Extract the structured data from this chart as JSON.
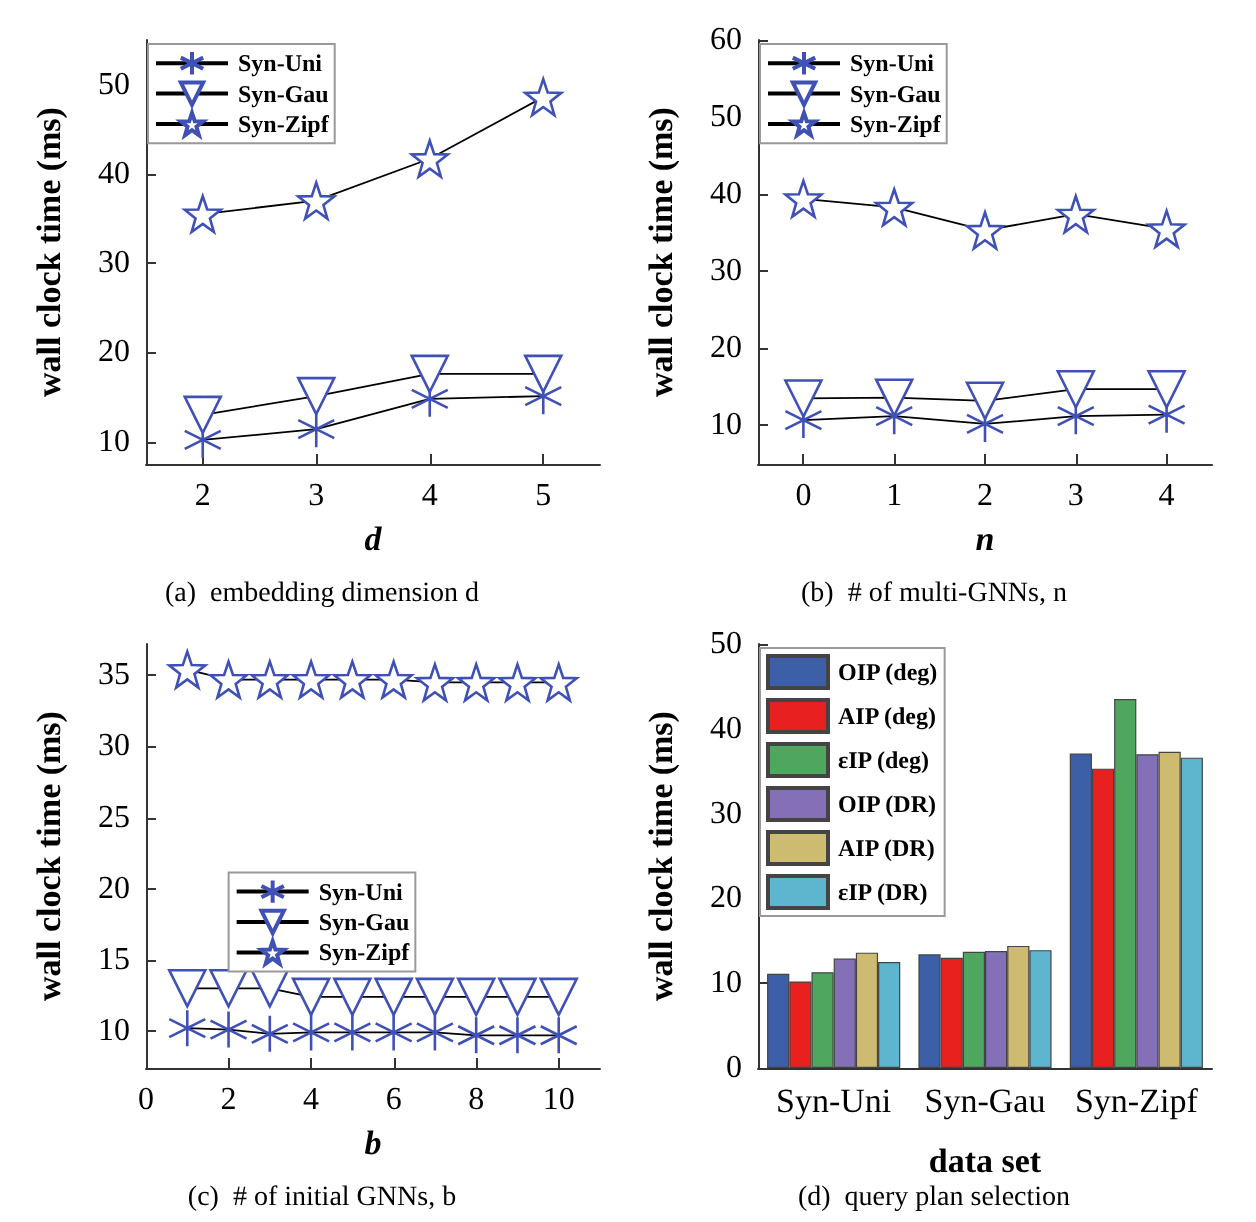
{
  "chart_data": [
    {
      "type": "line",
      "xlabel": "d",
      "ylabel": "wall clock time (ms)",
      "annotations": [
        "(a)  embedding dimension d"
      ],
      "x": [
        2,
        3,
        4,
        5
      ],
      "xlim": [
        1.5,
        5.5
      ],
      "xticks": [
        2,
        3,
        4,
        5
      ],
      "ylim": [
        7.5,
        55
      ],
      "yticks": [
        10,
        20,
        30,
        40,
        50
      ],
      "grid": false,
      "legend": "top left",
      "series": [
        {
          "name": "Syn-Uni",
          "color": "#3f51b5",
          "marker": "cross",
          "values": [
            10.2,
            11.4,
            14.8,
            15.1
          ]
        },
        {
          "name": "Syn-Gau",
          "color": "#3f51b5",
          "marker": "triangle",
          "values": [
            13.0,
            15.1,
            17.6,
            17.6
          ]
        },
        {
          "name": "Syn-Zipf",
          "color": "#3f51b5",
          "marker": "star",
          "values": [
            35.5,
            37.0,
            41.7,
            48.6
          ]
        }
      ]
    },
    {
      "type": "line",
      "xlabel": "n",
      "ylabel": "wall clock time (ms)",
      "annotations": [
        "(b)  # of multi-GNNs, n"
      ],
      "x": [
        0,
        1,
        2,
        3,
        4
      ],
      "xlim": [
        -0.5,
        4.5
      ],
      "xticks": [
        0,
        1,
        2,
        3,
        4
      ],
      "ylim": [
        5,
        60
      ],
      "yticks": [
        10,
        20,
        30,
        40,
        50,
        60
      ],
      "grid": false,
      "legend": "top left",
      "series": [
        {
          "name": "Syn-Uni",
          "color": "#3f51b5",
          "marker": "cross",
          "values": [
            10.7,
            11.2,
            10.2,
            11.2,
            11.4
          ]
        },
        {
          "name": "Syn-Gau",
          "color": "#3f51b5",
          "marker": "triangle",
          "values": [
            13.5,
            13.6,
            13.2,
            14.7,
            14.7
          ]
        },
        {
          "name": "Syn-Zipf",
          "color": "#3f51b5",
          "marker": "star",
          "values": [
            39.4,
            38.3,
            35.3,
            37.4,
            35.5
          ]
        }
      ]
    },
    {
      "type": "line",
      "xlabel": "b",
      "ylabel": "wall clock time (ms)",
      "annotations": [
        "(c)  # of initial GNNs, b"
      ],
      "x": [
        1,
        2,
        3,
        4,
        5,
        6,
        7,
        8,
        9,
        10
      ],
      "xlim": [
        0,
        11
      ],
      "xticks": [
        0,
        2,
        4,
        6,
        8,
        10
      ],
      "ylim": [
        7.4,
        37.2
      ],
      "yticks": [
        10,
        15,
        20,
        25,
        30,
        35
      ],
      "grid": false,
      "legend": "center",
      "series": [
        {
          "name": "Syn-Uni",
          "color": "#3f51b5",
          "marker": "cross",
          "values": [
            10.2,
            10.1,
            9.8,
            9.9,
            9.9,
            9.9,
            9.9,
            9.7,
            9.7,
            9.7
          ]
        },
        {
          "name": "Syn-Gau",
          "color": "#3f51b5",
          "marker": "triangle",
          "values": [
            13.0,
            13.0,
            13.0,
            12.4,
            12.4,
            12.4,
            12.4,
            12.4,
            12.4,
            12.4
          ]
        },
        {
          "name": "Syn-Zipf",
          "color": "#3f51b5",
          "marker": "star",
          "values": [
            35.4,
            34.7,
            34.7,
            34.7,
            34.7,
            34.7,
            34.5,
            34.5,
            34.5,
            34.5
          ]
        }
      ]
    },
    {
      "type": "bar",
      "xlabel": "data set",
      "ylabel": "wall clock time (ms)",
      "annotations": [
        "(d)  query plan selection"
      ],
      "categories": [
        "Syn-Uni",
        "Syn-Gau",
        "Syn-Zipf"
      ],
      "ylim": [
        0,
        50
      ],
      "yticks": [
        0,
        10,
        20,
        30,
        40,
        50
      ],
      "grid": false,
      "legend": "top left",
      "series": [
        {
          "name": "OIP (deg)",
          "color": "#3d5fa8",
          "values": [
            11.1,
            13.4,
            37.1
          ]
        },
        {
          "name": "AIP (deg)",
          "color": "#e8201f",
          "values": [
            10.2,
            13.0,
            35.3
          ]
        },
        {
          "name": "εIP (deg)",
          "color": "#4fa75f",
          "values": [
            11.3,
            13.7,
            43.5
          ]
        },
        {
          "name": "OIP (DR)",
          "color": "#8470b6",
          "values": [
            12.9,
            13.8,
            37.0
          ]
        },
        {
          "name": "AIP (DR)",
          "color": "#cdbb72",
          "values": [
            13.6,
            14.4,
            37.3
          ]
        },
        {
          "name": "εIP (DR)",
          "color": "#5db6ce",
          "values": [
            12.5,
            13.9,
            36.6
          ]
        }
      ]
    }
  ]
}
